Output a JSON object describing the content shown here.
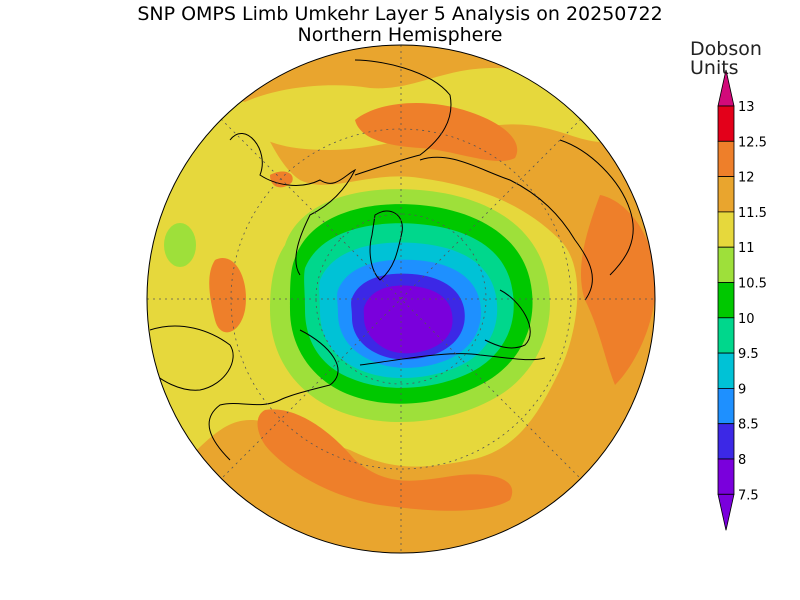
{
  "header": {
    "title": "SNP OMPS Limb Umkehr Layer 5 Analysis on 20250722",
    "subtitle": "Northern Hemisphere"
  },
  "legend": {
    "units_line1": "Dobson",
    "units_line2": "Units",
    "levels": [
      {
        "label": "13",
        "color": "#d20a7a"
      },
      {
        "label": "12.5",
        "color": "#e3001a"
      },
      {
        "label": "12",
        "color": "#ee7f2a"
      },
      {
        "label": "11.5",
        "color": "#e9a52e"
      },
      {
        "label": "11",
        "color": "#e6d83c"
      },
      {
        "label": "10.5",
        "color": "#9ee03a"
      },
      {
        "label": "10",
        "color": "#00c800"
      },
      {
        "label": "9.5",
        "color": "#00d78c"
      },
      {
        "label": "9",
        "color": "#00c2d6"
      },
      {
        "label": "8.5",
        "color": "#1e90ff"
      },
      {
        "label": "8",
        "color": "#3c28e6"
      },
      {
        "label": "7.5",
        "color": "#7a00dc"
      }
    ]
  },
  "map": {
    "projection": "north polar stereographic",
    "colors": {
      "orange": "#ee7f2a",
      "gold": "#e9a52e",
      "yellow": "#e6d83c",
      "lightgreen": "#9ee03a",
      "green": "#00c800",
      "seagreen": "#00d78c",
      "cyan": "#00c2d6",
      "blue": "#1e90ff",
      "indigo": "#3c28e6",
      "purple": "#7a00dc"
    }
  }
}
